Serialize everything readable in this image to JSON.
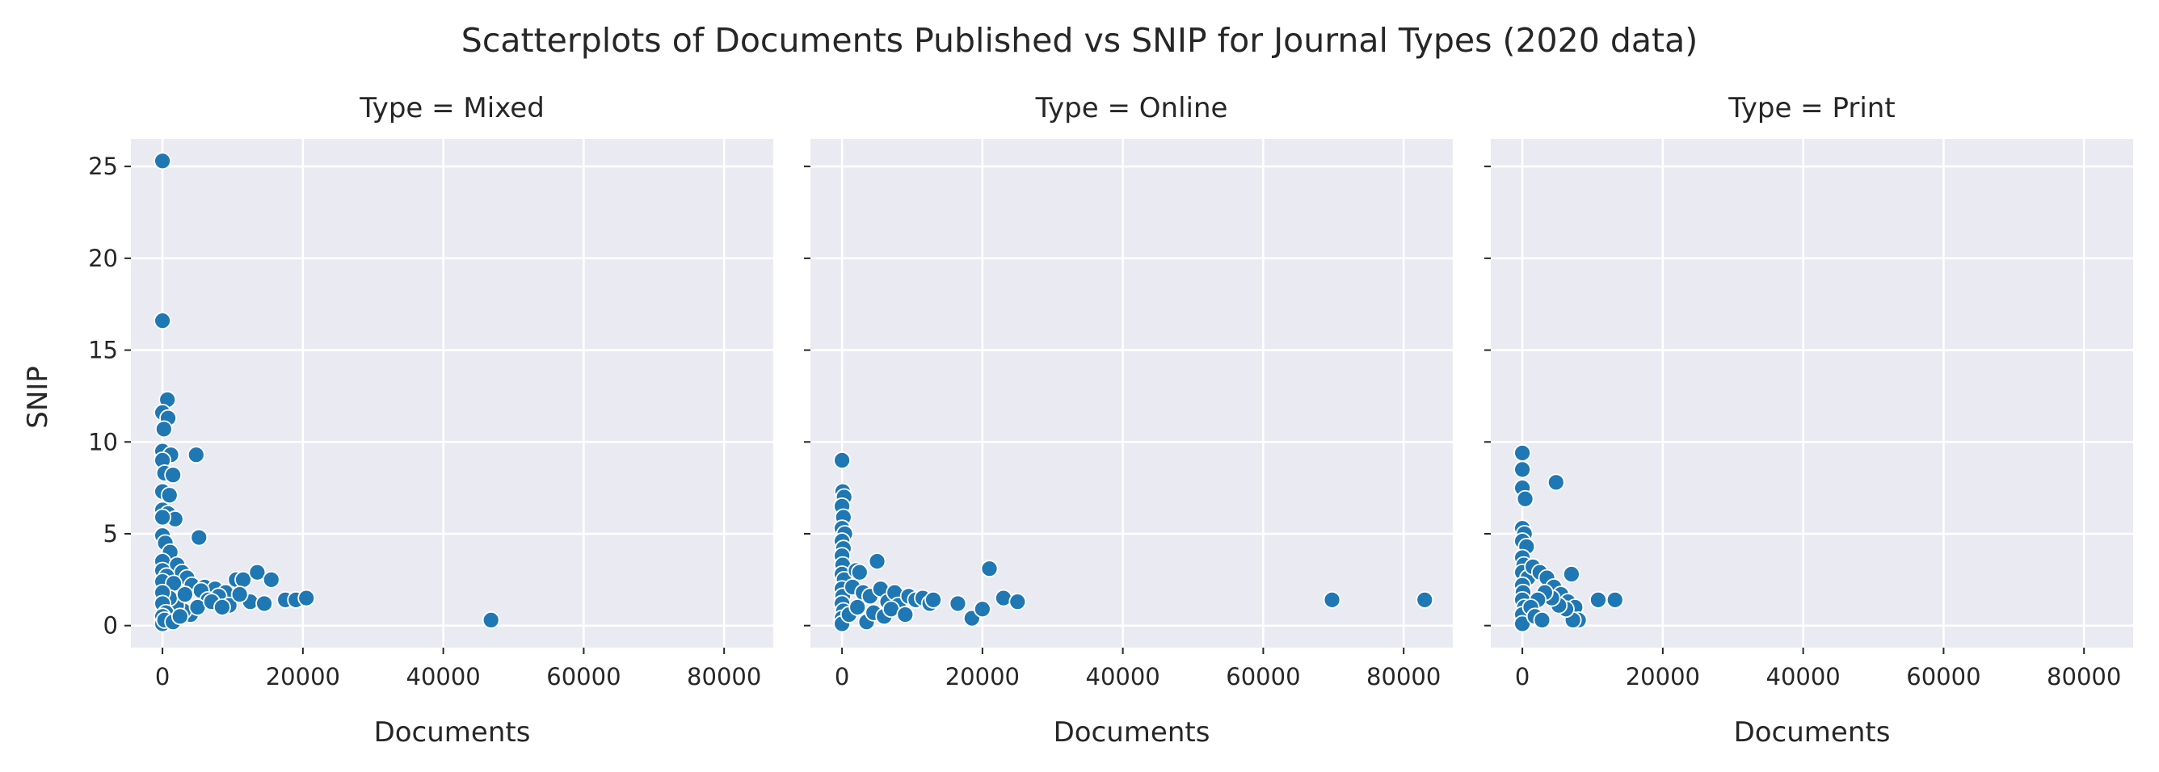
{
  "chart_data": {
    "type": "scatter",
    "title": "Scatterplots of Documents Published vs SNIP for Journal Types (2020 data)",
    "xlabel": "Documents",
    "ylabel": "SNIP",
    "xlim": [
      -4500,
      87000
    ],
    "ylim": [
      -1.2,
      26.5
    ],
    "xticks": [
      0,
      20000,
      40000,
      60000,
      80000
    ],
    "xtick_labels": [
      "0",
      "20000",
      "40000",
      "60000",
      "80000"
    ],
    "yticks": [
      0,
      5,
      10,
      15,
      20,
      25
    ],
    "ytick_labels": [
      "0",
      "5",
      "10",
      "15",
      "20",
      "25"
    ],
    "grid": true,
    "marker_color": "#1f77b4",
    "panels": [
      {
        "title": "Type = Mixed",
        "points": [
          [
            0,
            25.3
          ],
          [
            0,
            16.6
          ],
          [
            700,
            12.3
          ],
          [
            0,
            11.6
          ],
          [
            800,
            11.3
          ],
          [
            200,
            10.7
          ],
          [
            0,
            9.5
          ],
          [
            1200,
            9.3
          ],
          [
            4800,
            9.3
          ],
          [
            0,
            9.0
          ],
          [
            300,
            8.3
          ],
          [
            1500,
            8.2
          ],
          [
            0,
            7.3
          ],
          [
            1000,
            7.1
          ],
          [
            0,
            6.3
          ],
          [
            800,
            6.1
          ],
          [
            1800,
            5.8
          ],
          [
            0,
            5.9
          ],
          [
            5200,
            4.8
          ],
          [
            0,
            4.9
          ],
          [
            400,
            4.5
          ],
          [
            1100,
            4.0
          ],
          [
            0,
            3.5
          ],
          [
            2100,
            3.3
          ],
          [
            0,
            3.0
          ],
          [
            2800,
            2.9
          ],
          [
            600,
            2.7
          ],
          [
            3500,
            2.6
          ],
          [
            0,
            2.4
          ],
          [
            1600,
            2.3
          ],
          [
            4200,
            2.2
          ],
          [
            6000,
            2.1
          ],
          [
            7500,
            2.0
          ],
          [
            5500,
            1.9
          ],
          [
            9000,
            1.8
          ],
          [
            10500,
            2.5
          ],
          [
            11500,
            2.5
          ],
          [
            13500,
            2.9
          ],
          [
            15500,
            2.5
          ],
          [
            17500,
            1.4
          ],
          [
            19000,
            1.4
          ],
          [
            20500,
            1.5
          ],
          [
            12500,
            1.3
          ],
          [
            14500,
            1.2
          ],
          [
            8000,
            1.6
          ],
          [
            9500,
            1.1
          ],
          [
            6500,
            1.4
          ],
          [
            4000,
            0.6
          ],
          [
            3000,
            0.8
          ],
          [
            2000,
            1.1
          ],
          [
            1000,
            1.5
          ],
          [
            0,
            1.8
          ],
          [
            0,
            1.2
          ],
          [
            500,
            0.7
          ],
          [
            0,
            0.5
          ],
          [
            0,
            0.1
          ],
          [
            300,
            0.3
          ],
          [
            1500,
            0.2
          ],
          [
            2500,
            0.5
          ],
          [
            3200,
            1.7
          ],
          [
            5000,
            1.0
          ],
          [
            7000,
            1.3
          ],
          [
            8500,
            1.0
          ],
          [
            11000,
            1.7
          ],
          [
            46800,
            0.3
          ]
        ]
      },
      {
        "title": "Type = Online",
        "points": [
          [
            0,
            9.0
          ],
          [
            100,
            7.3
          ],
          [
            300,
            7.0
          ],
          [
            0,
            6.5
          ],
          [
            200,
            5.9
          ],
          [
            0,
            5.3
          ],
          [
            400,
            5.0
          ],
          [
            0,
            4.6
          ],
          [
            200,
            4.2
          ],
          [
            0,
            3.8
          ],
          [
            100,
            3.3
          ],
          [
            0,
            2.8
          ],
          [
            300,
            2.5
          ],
          [
            0,
            2.0
          ],
          [
            100,
            1.6
          ],
          [
            0,
            1.2
          ],
          [
            200,
            0.8
          ],
          [
            0,
            0.4
          ],
          [
            0,
            0.1
          ],
          [
            2000,
            3.0
          ],
          [
            2500,
            2.9
          ],
          [
            5000,
            3.5
          ],
          [
            1500,
            2.1
          ],
          [
            3000,
            1.8
          ],
          [
            4000,
            1.6
          ],
          [
            5500,
            2.0
          ],
          [
            6500,
            1.3
          ],
          [
            7500,
            1.8
          ],
          [
            8000,
            1.1
          ],
          [
            9500,
            1.6
          ],
          [
            10500,
            1.4
          ],
          [
            11500,
            1.5
          ],
          [
            12500,
            1.2
          ],
          [
            13000,
            1.4
          ],
          [
            16500,
            1.2
          ],
          [
            18500,
            0.4
          ],
          [
            20000,
            0.9
          ],
          [
            21000,
            3.1
          ],
          [
            23000,
            1.5
          ],
          [
            25000,
            1.3
          ],
          [
            1000,
            0.6
          ],
          [
            2200,
            1.0
          ],
          [
            3500,
            0.2
          ],
          [
            4500,
            0.7
          ],
          [
            6000,
            0.5
          ],
          [
            7000,
            0.9
          ],
          [
            9000,
            0.6
          ],
          [
            69800,
            1.4
          ],
          [
            83000,
            1.4
          ]
        ]
      },
      {
        "title": "Type = Print",
        "points": [
          [
            0,
            9.4
          ],
          [
            0,
            8.5
          ],
          [
            0,
            7.5
          ],
          [
            400,
            6.9
          ],
          [
            4800,
            7.8
          ],
          [
            0,
            5.3
          ],
          [
            300,
            5.0
          ],
          [
            0,
            4.6
          ],
          [
            600,
            4.3
          ],
          [
            0,
            3.7
          ],
          [
            200,
            3.3
          ],
          [
            0,
            2.9
          ],
          [
            800,
            2.6
          ],
          [
            0,
            2.2
          ],
          [
            100,
            1.8
          ],
          [
            0,
            1.4
          ],
          [
            300,
            1.0
          ],
          [
            0,
            0.6
          ],
          [
            0,
            0.1
          ],
          [
            1500,
            3.2
          ],
          [
            2500,
            2.9
          ],
          [
            3500,
            2.6
          ],
          [
            4500,
            2.1
          ],
          [
            5500,
            1.7
          ],
          [
            6500,
            1.3
          ],
          [
            7000,
            2.8
          ],
          [
            7500,
            1.0
          ],
          [
            8000,
            0.3
          ],
          [
            7200,
            0.3
          ],
          [
            6200,
            0.9
          ],
          [
            5200,
            1.1
          ],
          [
            4200,
            1.5
          ],
          [
            3200,
            1.8
          ],
          [
            2200,
            1.4
          ],
          [
            1200,
            1.0
          ],
          [
            1800,
            0.5
          ],
          [
            2800,
            0.3
          ],
          [
            10800,
            1.4
          ],
          [
            13200,
            1.4
          ]
        ]
      }
    ]
  }
}
